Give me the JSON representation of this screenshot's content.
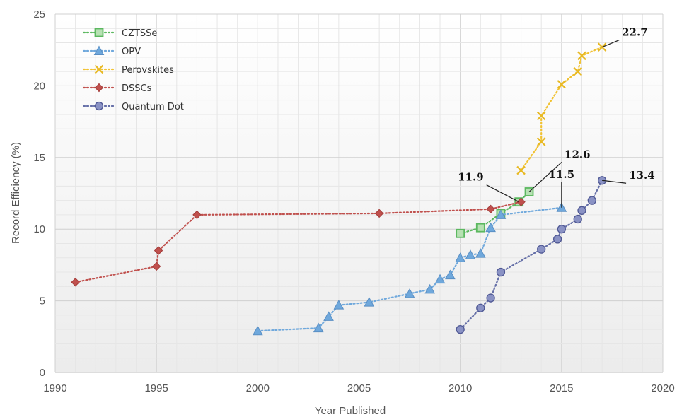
{
  "chart_data": {
    "type": "line",
    "title": "",
    "xlabel": "Year Published",
    "ylabel": "Record Efficiency (%)",
    "xlim": [
      1990,
      2020
    ],
    "ylim": [
      0,
      25
    ],
    "x_ticks": [
      "1990",
      "1995",
      "2000",
      "2005",
      "2010",
      "2015",
      "2020"
    ],
    "y_ticks": [
      "0",
      "5",
      "10",
      "15",
      "20",
      "25"
    ],
    "grid": true,
    "legend_position": "top-left",
    "series": [
      {
        "name": "CZTSSe",
        "color": "#5bb85f",
        "marker": "square",
        "points": [
          [
            2010.0,
            9.7
          ],
          [
            2011.0,
            10.1
          ],
          [
            2012.0,
            11.1
          ],
          [
            2012.9,
            11.9
          ],
          [
            2013.4,
            12.6
          ]
        ]
      },
      {
        "name": "OPV",
        "color": "#6fa8dc",
        "marker": "triangle",
        "points": [
          [
            2000.0,
            2.9
          ],
          [
            2003.0,
            3.1
          ],
          [
            2003.5,
            3.9
          ],
          [
            2004.0,
            4.7
          ],
          [
            2005.5,
            4.9
          ],
          [
            2007.5,
            5.5
          ],
          [
            2008.5,
            5.8
          ],
          [
            2009.0,
            6.5
          ],
          [
            2009.5,
            6.8
          ],
          [
            2010.0,
            8.0
          ],
          [
            2010.5,
            8.2
          ],
          [
            2011.0,
            8.3
          ],
          [
            2011.5,
            10.1
          ],
          [
            2012.0,
            11.0
          ],
          [
            2015.0,
            11.5
          ]
        ]
      },
      {
        "name": "Perovskites",
        "color": "#f1c232",
        "marker": "x",
        "points": [
          [
            2013.0,
            14.1
          ],
          [
            2014.0,
            16.1
          ],
          [
            2014.0,
            17.9
          ],
          [
            2015.0,
            20.1
          ],
          [
            2015.8,
            21.0
          ],
          [
            2016.0,
            22.1
          ],
          [
            2017.0,
            22.7
          ]
        ]
      },
      {
        "name": "DSSCs",
        "color": "#c0504d",
        "marker": "diamond",
        "points": [
          [
            1991.0,
            6.3
          ],
          [
            1995.0,
            7.4
          ],
          [
            1995.1,
            8.5
          ],
          [
            1997.0,
            11.0
          ],
          [
            2006.0,
            11.1
          ],
          [
            2011.5,
            11.4
          ],
          [
            2013.0,
            11.9
          ]
        ]
      },
      {
        "name": "Quantum Dot",
        "color": "#6670a8",
        "marker": "circle",
        "points": [
          [
            2010.0,
            3.0
          ],
          [
            2011.0,
            4.5
          ],
          [
            2011.5,
            5.2
          ],
          [
            2012.0,
            7.0
          ],
          [
            2014.0,
            8.6
          ],
          [
            2014.8,
            9.3
          ],
          [
            2015.0,
            10.0
          ],
          [
            2015.8,
            10.7
          ],
          [
            2016.0,
            11.3
          ],
          [
            2016.5,
            12.0
          ],
          [
            2017.0,
            13.4
          ]
        ]
      }
    ],
    "annotations": [
      {
        "text": "22.7",
        "series": "Perovskites",
        "year": 2017.0,
        "value": 22.7,
        "dx": 24,
        "dy": -16
      },
      {
        "text": "12.6",
        "series": "CZTSSe",
        "year": 2013.4,
        "value": 12.6,
        "dx": 46,
        "dy": -48
      },
      {
        "text": "11.9",
        "series": "DSSCs",
        "year": 2012.9,
        "value": 11.9,
        "dx": -46,
        "dy": -30
      },
      {
        "text": "11.5",
        "series": "OPV",
        "year": 2015.0,
        "value": 11.5,
        "dx": 0,
        "dy": -42
      },
      {
        "text": "13.4",
        "series": "Quantum Dot",
        "year": 2017.0,
        "value": 13.4,
        "dx": 34,
        "dy": -2
      }
    ]
  }
}
